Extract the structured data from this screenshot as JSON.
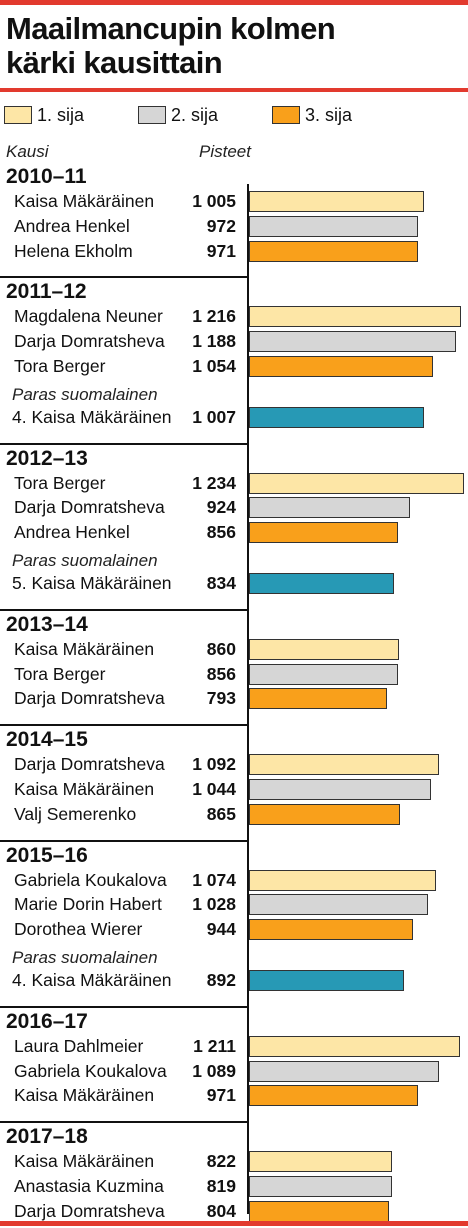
{
  "title": {
    "line1": "Maailmancupin kolmen",
    "line2": "kärki kausittain"
  },
  "legend": [
    {
      "label": "1. sija",
      "color": "#fde6a6"
    },
    {
      "label": "2. sija",
      "color": "#d6d6d6"
    },
    {
      "label": "3. sija",
      "color": "#f9a01b"
    }
  ],
  "colors": {
    "finnish": "#2799b5",
    "accent": "#e23a2e"
  },
  "headers": {
    "season": "Kausi",
    "points": "Pisteet"
  },
  "chart_data": {
    "type": "bar",
    "orientation": "horizontal",
    "value_label": "Pisteet",
    "category_label": "Kausi",
    "xlim": [
      0,
      1250
    ],
    "seasons": [
      {
        "season": "2010–11",
        "rows": [
          {
            "name": "Kaisa Mäkäräinen",
            "value": 1005,
            "display": "1 005",
            "rank": 1
          },
          {
            "name": "Andrea Henkel",
            "value": 972,
            "display": "972",
            "rank": 2
          },
          {
            "name": "Helena Ekholm",
            "value": 971,
            "display": "971",
            "rank": 3
          }
        ]
      },
      {
        "season": "2011–12",
        "rows": [
          {
            "name": "Magdalena Neuner",
            "value": 1216,
            "display": "1 216",
            "rank": 1
          },
          {
            "name": "Darja Domratsheva",
            "value": 1188,
            "display": "1 188",
            "rank": 2
          },
          {
            "name": "Tora Berger",
            "value": 1054,
            "display": "1 054",
            "rank": 3
          }
        ],
        "finnish_label": "Paras suomalainen",
        "finnish": {
          "name": "4. Kaisa Mäkäräinen",
          "value": 1007,
          "display": "1 007"
        }
      },
      {
        "season": "2012–13",
        "rows": [
          {
            "name": "Tora Berger",
            "value": 1234,
            "display": "1 234",
            "rank": 1
          },
          {
            "name": "Darja Domratsheva",
            "value": 924,
            "display": "924",
            "rank": 2
          },
          {
            "name": "Andrea Henkel",
            "value": 856,
            "display": "856",
            "rank": 3
          }
        ],
        "finnish_label": "Paras suomalainen",
        "finnish": {
          "name": "5. Kaisa Mäkäräinen",
          "value": 834,
          "display": "834"
        }
      },
      {
        "season": "2013–14",
        "rows": [
          {
            "name": "Kaisa Mäkäräinen",
            "value": 860,
            "display": "860",
            "rank": 1
          },
          {
            "name": "Tora Berger",
            "value": 856,
            "display": "856",
            "rank": 2
          },
          {
            "name": "Darja Domratsheva",
            "value": 793,
            "display": "793",
            "rank": 3
          }
        ]
      },
      {
        "season": "2014–15",
        "rows": [
          {
            "name": "Darja Domratsheva",
            "value": 1092,
            "display": "1 092",
            "rank": 1
          },
          {
            "name": "Kaisa Mäkäräinen",
            "value": 1044,
            "display": "1 044",
            "rank": 2
          },
          {
            "name": "Valj Semerenko",
            "value": 865,
            "display": "865",
            "rank": 3
          }
        ]
      },
      {
        "season": "2015–16",
        "rows": [
          {
            "name": "Gabriela Koukalova",
            "value": 1074,
            "display": "1 074",
            "rank": 1
          },
          {
            "name": "Marie Dorin Habert",
            "value": 1028,
            "display": "1 028",
            "rank": 2
          },
          {
            "name": "Dorothea Wierer",
            "value": 944,
            "display": "944",
            "rank": 3
          }
        ],
        "finnish_label": "Paras suomalainen",
        "finnish": {
          "name": "4. Kaisa Mäkäräinen",
          "value": 892,
          "display": "892"
        }
      },
      {
        "season": "2016–17",
        "rows": [
          {
            "name": "Laura Dahlmeier",
            "value": 1211,
            "display": "1 211",
            "rank": 1
          },
          {
            "name": "Gabriela Koukalova",
            "value": 1089,
            "display": "1 089",
            "rank": 2
          },
          {
            "name": "Kaisa Mäkäräinen",
            "value": 971,
            "display": "971",
            "rank": 3
          }
        ]
      },
      {
        "season": "2017–18",
        "rows": [
          {
            "name": "Kaisa Mäkäräinen",
            "value": 822,
            "display": "822",
            "rank": 1
          },
          {
            "name": "Anastasia Kuzmina",
            "value": 819,
            "display": "819",
            "rank": 2
          },
          {
            "name": "Darja Domratsheva",
            "value": 804,
            "display": "804",
            "rank": 3
          }
        ]
      }
    ]
  }
}
